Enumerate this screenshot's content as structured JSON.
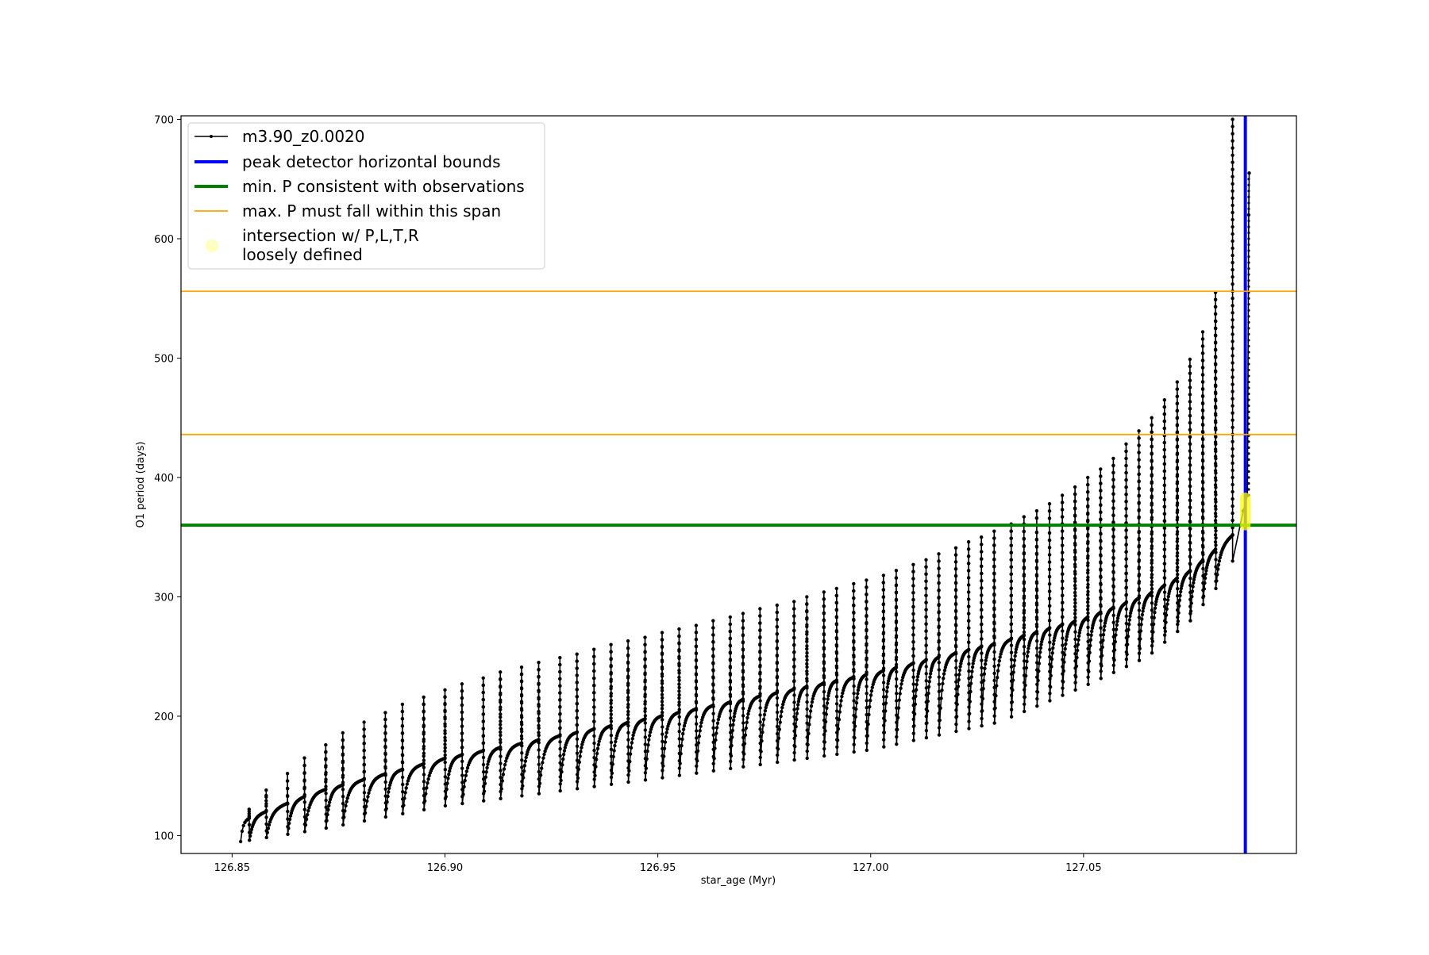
{
  "chart_data": {
    "type": "line",
    "title": "",
    "xlabel": "star_age (Myr)",
    "ylabel": "O1 period (days)",
    "xlim": [
      126.838,
      127.1
    ],
    "ylim": [
      85,
      703
    ],
    "xticks": [
      126.85,
      126.9,
      126.95,
      127.0,
      127.05
    ],
    "xtick_labels": [
      "126.85",
      "126.90",
      "126.95",
      "127.00",
      "127.05"
    ],
    "yticks": [
      100,
      200,
      300,
      400,
      500,
      600,
      700
    ],
    "ytick_labels": [
      "100",
      "200",
      "300",
      "400",
      "500",
      "600",
      "700"
    ],
    "grid": false,
    "legend_placement": "top-left",
    "series": [
      {
        "name": "m3.90_z0.0020",
        "color": "#000000",
        "style": "line with dot markers",
        "start_age": 126.852,
        "start_period": 110,
        "pulse_ages": [
          126.854,
          126.858,
          126.863,
          126.867,
          126.872,
          126.876,
          126.881,
          126.886,
          126.89,
          126.895,
          126.9,
          126.904,
          126.909,
          126.913,
          126.918,
          126.922,
          126.927,
          126.931,
          126.935,
          126.939,
          126.943,
          126.947,
          126.951,
          126.955,
          126.959,
          126.963,
          126.967,
          126.97,
          126.974,
          126.978,
          126.982,
          126.985,
          126.989,
          126.992,
          126.996,
          126.999,
          127.003,
          127.006,
          127.01,
          127.013,
          127.016,
          127.02,
          127.023,
          127.026,
          127.029,
          127.033,
          127.036,
          127.039,
          127.042,
          127.045,
          127.048,
          127.051,
          127.054,
          127.057,
          127.06,
          127.063,
          127.066,
          127.069,
          127.072,
          127.075,
          127.078,
          127.081,
          127.085
        ],
        "pulse_peaks": [
          122,
          138,
          152,
          165,
          176,
          186,
          195,
          203,
          210,
          216,
          222,
          227,
          232,
          237,
          241,
          245,
          249,
          252,
          256,
          260,
          263,
          266,
          270,
          273,
          276,
          280,
          283,
          286,
          290,
          293,
          296,
          300,
          304,
          307,
          311,
          314,
          318,
          322,
          327,
          331,
          336,
          341,
          346,
          350,
          355,
          361,
          367,
          372,
          378,
          385,
          392,
          400,
          407,
          416,
          428,
          439,
          450,
          465,
          480,
          499,
          522,
          555,
          700
        ],
        "plateau_envelope": [
          [
            126.852,
            112
          ],
          [
            126.87,
            137
          ],
          [
            126.9,
            165
          ],
          [
            126.95,
            200
          ],
          [
            127.0,
            236
          ],
          [
            127.03,
            262
          ],
          [
            127.05,
            282
          ],
          [
            127.065,
            302
          ],
          [
            127.075,
            322
          ],
          [
            127.085,
            352
          ]
        ],
        "trough_envelope": [
          [
            126.852,
            95
          ],
          [
            126.87,
            105
          ],
          [
            126.9,
            125
          ],
          [
            126.95,
            148
          ],
          [
            127.0,
            172
          ],
          [
            127.03,
            195
          ],
          [
            127.05,
            225
          ],
          [
            127.065,
            250
          ],
          [
            127.075,
            280
          ],
          [
            127.085,
            325
          ]
        ],
        "final_segment": [
          [
            127.085,
            330
          ],
          [
            127.0875,
            372
          ],
          [
            127.0885,
            385
          ],
          [
            127.0888,
            620
          ],
          [
            127.0889,
            655
          ]
        ]
      }
    ],
    "reference_lines": [
      {
        "name": "peak detector horizontal bounds",
        "orientation": "vertical",
        "x": 127.088,
        "color": "#0000ff"
      },
      {
        "name": "min. P consistent with observations",
        "orientation": "horizontal",
        "y": 360,
        "color": "#008000"
      },
      {
        "name": "max. P must fall within this span",
        "orientation": "horizontal",
        "y": [
          436,
          556
        ],
        "color": "#ffa500"
      }
    ],
    "highlight": {
      "name": "intersection w/ P,L,T,R\nloosely defined",
      "x": 127.088,
      "y": [
        360,
        383
      ],
      "color": "#ffff00"
    },
    "legend": [
      {
        "label": "m3.90_z0.0020",
        "color": "#000000",
        "kind": "line-marker"
      },
      {
        "label": "peak detector horizontal bounds",
        "color": "#0000ff",
        "kind": "thick-line"
      },
      {
        "label": "min. P consistent with observations",
        "color": "#008000",
        "kind": "thick-line"
      },
      {
        "label": "max. P must fall within this span",
        "color": "#ffa500",
        "kind": "thin-line"
      },
      {
        "label": "intersection w/ P,L,T,R",
        "label2": "loosely defined",
        "color": "#ffffc0",
        "kind": "circle"
      }
    ]
  }
}
